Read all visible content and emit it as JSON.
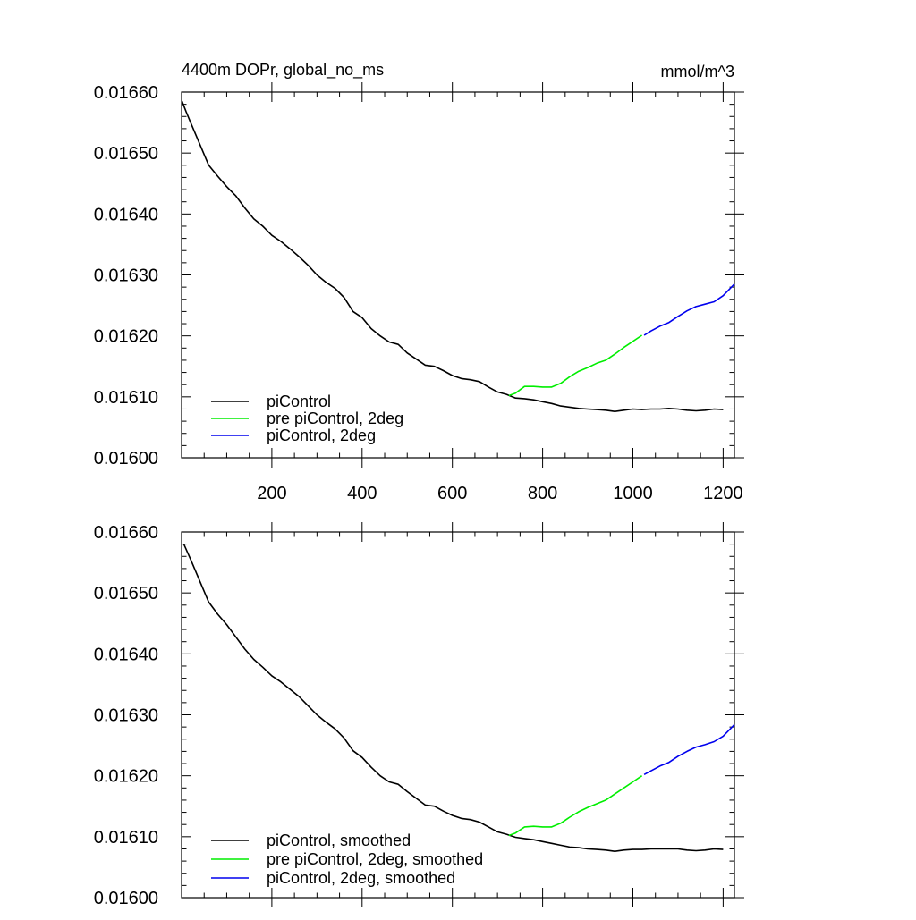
{
  "chart_data": [
    {
      "type": "line",
      "title": "4400m DOPr, global_no_ms",
      "units": "mmol/m^3",
      "xlim": [
        0,
        1225
      ],
      "ylim": [
        0.016,
        0.0166
      ],
      "xticks": [
        200,
        400,
        600,
        800,
        1000,
        1200
      ],
      "xtick_labels": [
        "200",
        "400",
        "600",
        "800",
        "1000",
        "1200"
      ],
      "yticks": [
        0.016,
        0.0161,
        0.0162,
        0.0163,
        0.0164,
        0.0165,
        0.0166
      ],
      "ytick_labels": [
        "0.01600",
        "0.01610",
        "0.01620",
        "0.01630",
        "0.01640",
        "0.01650",
        "0.01660"
      ],
      "legend_position": "bottom-left",
      "series": [
        {
          "name": "piControl",
          "color": "#000000",
          "x": [
            1,
            10,
            20,
            40,
            60,
            80,
            100,
            120,
            140,
            160,
            180,
            200,
            220,
            240,
            260,
            280,
            300,
            320,
            340,
            360,
            380,
            400,
            420,
            440,
            460,
            480,
            500,
            520,
            540,
            560,
            580,
            600,
            620,
            640,
            660,
            680,
            700,
            720,
            740,
            760,
            780,
            800,
            820,
            840,
            860,
            880,
            900,
            920,
            940,
            960,
            980,
            1000,
            1020,
            1040,
            1060,
            1080,
            1100,
            1120,
            1140,
            1160,
            1180,
            1200
          ],
          "y": [
            0.016585,
            0.016568,
            0.01655,
            0.016515,
            0.01648,
            0.016462,
            0.016445,
            0.01643,
            0.01641,
            0.016392,
            0.01638,
            0.016365,
            0.016355,
            0.016343,
            0.01633,
            0.016316,
            0.0163,
            0.016288,
            0.016278,
            0.016263,
            0.01624,
            0.01623,
            0.016212,
            0.0162,
            0.01619,
            0.016186,
            0.016172,
            0.016162,
            0.016152,
            0.01615,
            0.016143,
            0.016135,
            0.01613,
            0.016128,
            0.016125,
            0.016116,
            0.016108,
            0.016104,
            0.016098,
            0.016097,
            0.016095,
            0.016092,
            0.016089,
            0.016085,
            0.016083,
            0.016081,
            0.01608,
            0.016079,
            0.016078,
            0.016076,
            0.016078,
            0.01608,
            0.016079,
            0.01608,
            0.01608,
            0.016081,
            0.01608,
            0.016078,
            0.016077,
            0.016078,
            0.01608,
            0.016079
          ]
        },
        {
          "name": "pre piControl, 2deg",
          "color": "#00ee00",
          "x": [
            725,
            740,
            760,
            780,
            800,
            820,
            840,
            860,
            880,
            900,
            920,
            940,
            960,
            980,
            1000,
            1020
          ],
          "y": [
            0.016102,
            0.016106,
            0.016117,
            0.016117,
            0.016116,
            0.016116,
            0.016122,
            0.016133,
            0.016142,
            0.016148,
            0.016155,
            0.01616,
            0.01617,
            0.016181,
            0.016191,
            0.016201
          ]
        },
        {
          "name": "piControl, 2deg",
          "color": "#0000ee",
          "x": [
            1025,
            1040,
            1060,
            1080,
            1100,
            1120,
            1140,
            1160,
            1180,
            1200,
            1225
          ],
          "y": [
            0.016201,
            0.016208,
            0.016216,
            0.016222,
            0.016232,
            0.016241,
            0.016248,
            0.016252,
            0.016256,
            0.016266,
            0.016285
          ]
        }
      ]
    },
    {
      "type": "line",
      "title": "",
      "units": "",
      "xlim": [
        0,
        1225
      ],
      "ylim": [
        0.016,
        0.0166
      ],
      "xticks": [
        200,
        400,
        600,
        800,
        1000,
        1200
      ],
      "xtick_labels": [],
      "yticks": [
        0.016,
        0.0161,
        0.0162,
        0.0163,
        0.0164,
        0.0165,
        0.0166
      ],
      "ytick_labels": [
        "0.01600",
        "0.01610",
        "0.01620",
        "0.01630",
        "0.01640",
        "0.01650",
        "0.01660"
      ],
      "legend_position": "bottom-left",
      "series": [
        {
          "name": "piControl, smoothed",
          "color": "#000000",
          "x": [
            5,
            20,
            40,
            60,
            80,
            100,
            120,
            140,
            160,
            180,
            200,
            220,
            240,
            260,
            280,
            300,
            320,
            340,
            360,
            380,
            400,
            420,
            440,
            460,
            480,
            500,
            520,
            540,
            560,
            580,
            600,
            620,
            640,
            660,
            680,
            700,
            720,
            740,
            760,
            780,
            800,
            820,
            840,
            860,
            880,
            900,
            920,
            940,
            960,
            980,
            1000,
            1020,
            1040,
            1060,
            1080,
            1100,
            1120,
            1140,
            1160,
            1180,
            1200
          ],
          "y": [
            0.01658,
            0.016555,
            0.01652,
            0.016485,
            0.016465,
            0.016448,
            0.016428,
            0.016408,
            0.016391,
            0.016378,
            0.016364,
            0.016354,
            0.016342,
            0.01633,
            0.016315,
            0.0163,
            0.016288,
            0.016277,
            0.016262,
            0.016241,
            0.01623,
            0.016214,
            0.0162,
            0.01619,
            0.016186,
            0.016174,
            0.016163,
            0.016152,
            0.01615,
            0.016142,
            0.016135,
            0.01613,
            0.016128,
            0.016124,
            0.016116,
            0.016108,
            0.016104,
            0.016099,
            0.016097,
            0.016095,
            0.016092,
            0.016089,
            0.016086,
            0.016083,
            0.016082,
            0.01608,
            0.016079,
            0.016078,
            0.016076,
            0.016078,
            0.016079,
            0.016079,
            0.01608,
            0.01608,
            0.01608,
            0.01608,
            0.016078,
            0.016077,
            0.016078,
            0.01608,
            0.016079
          ]
        },
        {
          "name": "pre piControl, 2deg, smoothed",
          "color": "#00ee00",
          "x": [
            725,
            740,
            760,
            780,
            800,
            820,
            840,
            860,
            880,
            900,
            920,
            940,
            960,
            980,
            1000,
            1020
          ],
          "y": [
            0.016102,
            0.016106,
            0.016116,
            0.016117,
            0.016116,
            0.016116,
            0.016122,
            0.016132,
            0.016141,
            0.016148,
            0.016154,
            0.01616,
            0.01617,
            0.01618,
            0.01619,
            0.0162
          ]
        },
        {
          "name": "piControl, 2deg, smoothed",
          "color": "#0000ee",
          "x": [
            1025,
            1040,
            1060,
            1080,
            1100,
            1120,
            1140,
            1160,
            1180,
            1200,
            1225
          ],
          "y": [
            0.016202,
            0.016208,
            0.016216,
            0.016222,
            0.016232,
            0.01624,
            0.016247,
            0.016251,
            0.016256,
            0.016265,
            0.016284
          ]
        }
      ]
    }
  ]
}
